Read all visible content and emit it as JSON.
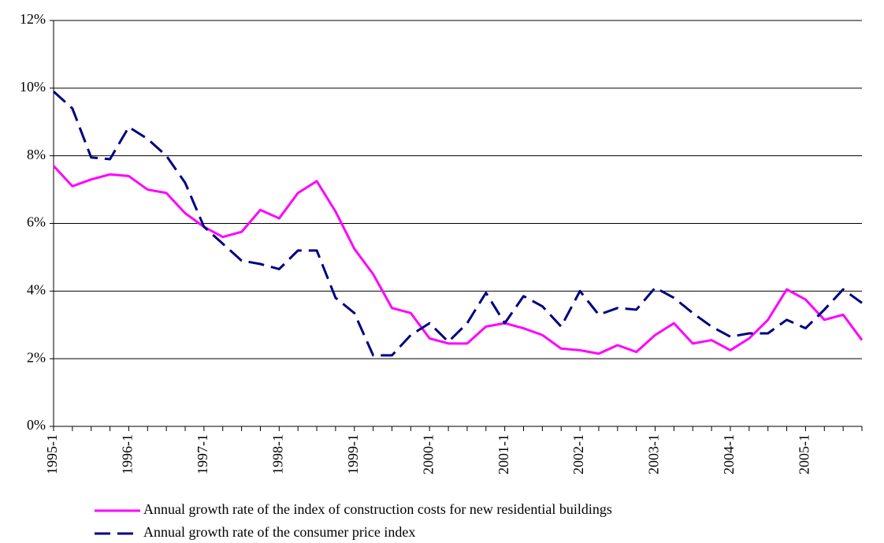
{
  "chart_data": {
    "type": "line",
    "categories": [
      "1995-1",
      null,
      null,
      null,
      "1996-1",
      null,
      null,
      null,
      "1997-1",
      null,
      null,
      null,
      "1998-1",
      null,
      null,
      null,
      "1999-1",
      null,
      null,
      null,
      "2000-1",
      null,
      null,
      null,
      "2001-1",
      null,
      null,
      null,
      "2002-1",
      null,
      null,
      null,
      "2003-1",
      null,
      null,
      null,
      "2004-1",
      null,
      null,
      null,
      "2005-1",
      null,
      null,
      null
    ],
    "series": [
      {
        "name": "Annual growth rate of the index of construction costs for new residential buildings",
        "color": "#ff00ff",
        "dash": false,
        "values": [
          7.7,
          7.1,
          7.3,
          7.45,
          7.4,
          7.0,
          6.9,
          6.3,
          5.9,
          5.6,
          5.75,
          6.4,
          6.15,
          6.9,
          7.25,
          6.35,
          5.25,
          4.5,
          3.5,
          3.35,
          2.6,
          2.45,
          2.45,
          2.95,
          3.05,
          2.9,
          2.7,
          2.3,
          2.25,
          2.15,
          2.4,
          2.2,
          2.7,
          3.05,
          2.45,
          2.55,
          2.25,
          2.6,
          3.15,
          4.05,
          3.75,
          3.15,
          3.3,
          2.55
        ]
      },
      {
        "name": "Annual growth rate of the consumer price index",
        "color": "#000080",
        "dash": true,
        "values": [
          9.9,
          9.4,
          7.95,
          7.9,
          8.85,
          8.5,
          8.0,
          7.2,
          5.9,
          5.4,
          4.9,
          4.8,
          4.65,
          5.2,
          5.2,
          3.8,
          3.35,
          2.1,
          2.1,
          2.7,
          3.05,
          2.5,
          3.05,
          3.95,
          3.05,
          3.85,
          3.55,
          2.95,
          4.0,
          3.3,
          3.5,
          3.45,
          4.1,
          3.8,
          3.35,
          2.95,
          2.65,
          2.75,
          2.75,
          3.15,
          2.9,
          3.45,
          4.05,
          3.65
        ]
      }
    ],
    "ylim": [
      0,
      12
    ],
    "yticks": [
      {
        "value": 0,
        "label": "0%"
      },
      {
        "value": 2,
        "label": "2%"
      },
      {
        "value": 4,
        "label": "4%"
      },
      {
        "value": 6,
        "label": "6%"
      },
      {
        "value": 8,
        "label": "8%"
      },
      {
        "value": 10,
        "label": "10%"
      },
      {
        "value": 12,
        "label": "12%"
      }
    ],
    "grid": true
  }
}
